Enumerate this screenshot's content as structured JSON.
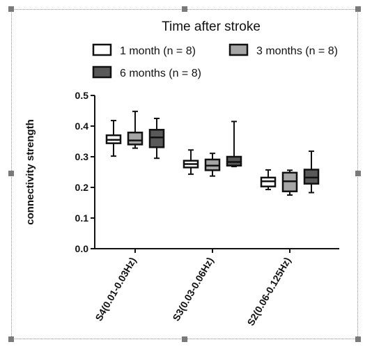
{
  "colors": {
    "one_month": "#ffffff",
    "three_months": "#a6a6a6",
    "six_months": "#595959",
    "stroke": "#111111"
  },
  "chart_data": {
    "type": "box",
    "legend_title": "Time after stroke",
    "legend_placement": "top",
    "ylabel": "connectivity strength",
    "ylim": [
      0,
      0.5
    ],
    "yticks": [
      "0.0",
      "0.1",
      "0.2",
      "0.3",
      "0.4",
      "0.5"
    ],
    "categories": [
      "S4(0.01-0.03Hz)",
      "S3(0.03-0.06Hz)",
      "S2(0.06-0.125Hz)"
    ],
    "series": [
      {
        "name": "1 month (n = 8)",
        "color": "#ffffff",
        "boxes": [
          {
            "min": 0.302,
            "q1": 0.344,
            "median": 0.355,
            "q3": 0.37,
            "max": 0.418
          },
          {
            "min": 0.243,
            "q1": 0.265,
            "median": 0.276,
            "q3": 0.287,
            "max": 0.322
          },
          {
            "min": 0.193,
            "q1": 0.203,
            "median": 0.22,
            "q3": 0.232,
            "max": 0.257
          }
        ]
      },
      {
        "name": "3 months (n = 8)",
        "color": "#a6a6a6",
        "boxes": [
          {
            "min": 0.328,
            "q1": 0.34,
            "median": 0.353,
            "q3": 0.379,
            "max": 0.448
          },
          {
            "min": 0.237,
            "q1": 0.256,
            "median": 0.271,
            "q3": 0.291,
            "max": 0.311
          },
          {
            "min": 0.175,
            "q1": 0.187,
            "median": 0.22,
            "q3": 0.248,
            "max": 0.256
          }
        ]
      },
      {
        "name": "6 months (n = 8)",
        "color": "#595959",
        "boxes": [
          {
            "min": 0.295,
            "q1": 0.331,
            "median": 0.363,
            "q3": 0.388,
            "max": 0.425
          },
          {
            "min": 0.268,
            "q1": 0.271,
            "median": 0.283,
            "q3": 0.3,
            "max": 0.415
          },
          {
            "min": 0.183,
            "q1": 0.212,
            "median": 0.232,
            "q3": 0.258,
            "max": 0.318
          }
        ]
      }
    ]
  }
}
